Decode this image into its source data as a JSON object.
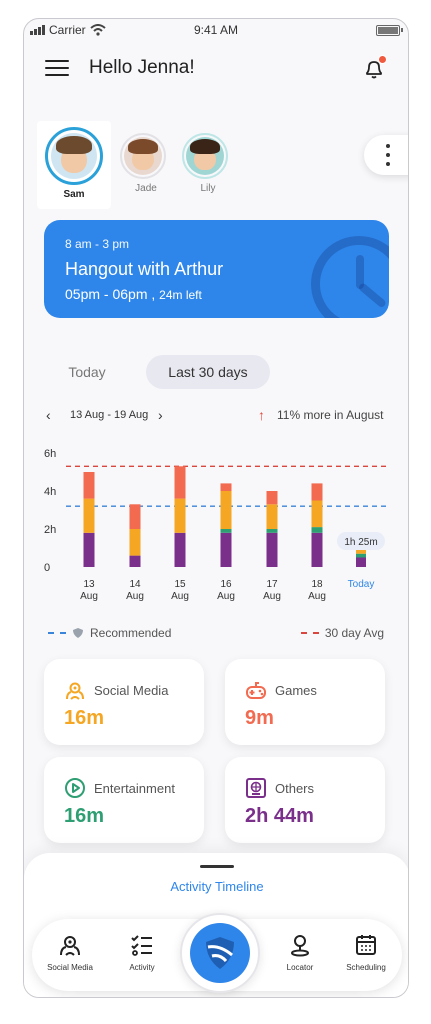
{
  "status_bar": {
    "carrier": "Carrier",
    "time": "9:41 AM"
  },
  "header": {
    "greeting": "Hello Jenna!"
  },
  "profiles": [
    {
      "name": "Sam",
      "selected": true
    },
    {
      "name": "Jade",
      "selected": false
    },
    {
      "name": "Lily",
      "selected": false
    }
  ],
  "event": {
    "time": "8 am - 3 pm",
    "title": "Hangout with Arthur",
    "slot": "05pm - 06pm ,",
    "left": "24m left"
  },
  "tabs": [
    {
      "label": "Today",
      "active": false
    },
    {
      "label": "Last 30 days",
      "active": true
    }
  ],
  "date_range": {
    "label": "13 Aug - 19 Aug",
    "trend": "11% more in August"
  },
  "chart_data": {
    "type": "bar",
    "stacked": true,
    "y_ticks": [
      "6h",
      "4h",
      "2h",
      "0"
    ],
    "ylim": [
      0,
      6
    ],
    "categories": [
      {
        "day": "13",
        "month": "Aug"
      },
      {
        "day": "14",
        "month": "Aug"
      },
      {
        "day": "15",
        "month": "Aug"
      },
      {
        "day": "16",
        "month": "Aug"
      },
      {
        "day": "17",
        "month": "Aug"
      },
      {
        "day": "18",
        "month": "Aug"
      },
      {
        "day": "Today",
        "month": ""
      }
    ],
    "series": [
      {
        "color": "#7a2f8b",
        "values": [
          1.8,
          0.6,
          1.8,
          1.8,
          1.8,
          1.8,
          0.5
        ]
      },
      {
        "color": "#2e9e73",
        "values": [
          0,
          0,
          0,
          0.2,
          0.2,
          0.3,
          0.2
        ]
      },
      {
        "color": "#f5a623",
        "values": [
          1.8,
          1.4,
          1.8,
          2.0,
          1.3,
          1.4,
          0.3
        ]
      },
      {
        "color": "#f26a4f",
        "values": [
          1.4,
          1.3,
          1.7,
          0.4,
          0.7,
          0.9,
          0.2
        ]
      }
    ],
    "recommended": 3.2,
    "avg_30_day": 5.3,
    "today_label": "1h 25m",
    "legend": {
      "recommended": "Recommended",
      "avg": "30 day Avg"
    }
  },
  "categories": [
    {
      "label": "Social Media",
      "value": "16m",
      "color": "#f5a623"
    },
    {
      "label": "Games",
      "value": "9m",
      "color": "#f26a4f"
    },
    {
      "label": "Entertainment",
      "value": "16m",
      "color": "#2e9e73"
    },
    {
      "label": "Others",
      "value": "2h 44m",
      "color": "#7a2f8b"
    }
  ],
  "timeline": {
    "label": "Activity Timeline"
  },
  "nav": [
    {
      "label": "Social Media"
    },
    {
      "label": "Activity"
    },
    {
      "label": "Locator"
    },
    {
      "label": "Scheduling"
    }
  ]
}
